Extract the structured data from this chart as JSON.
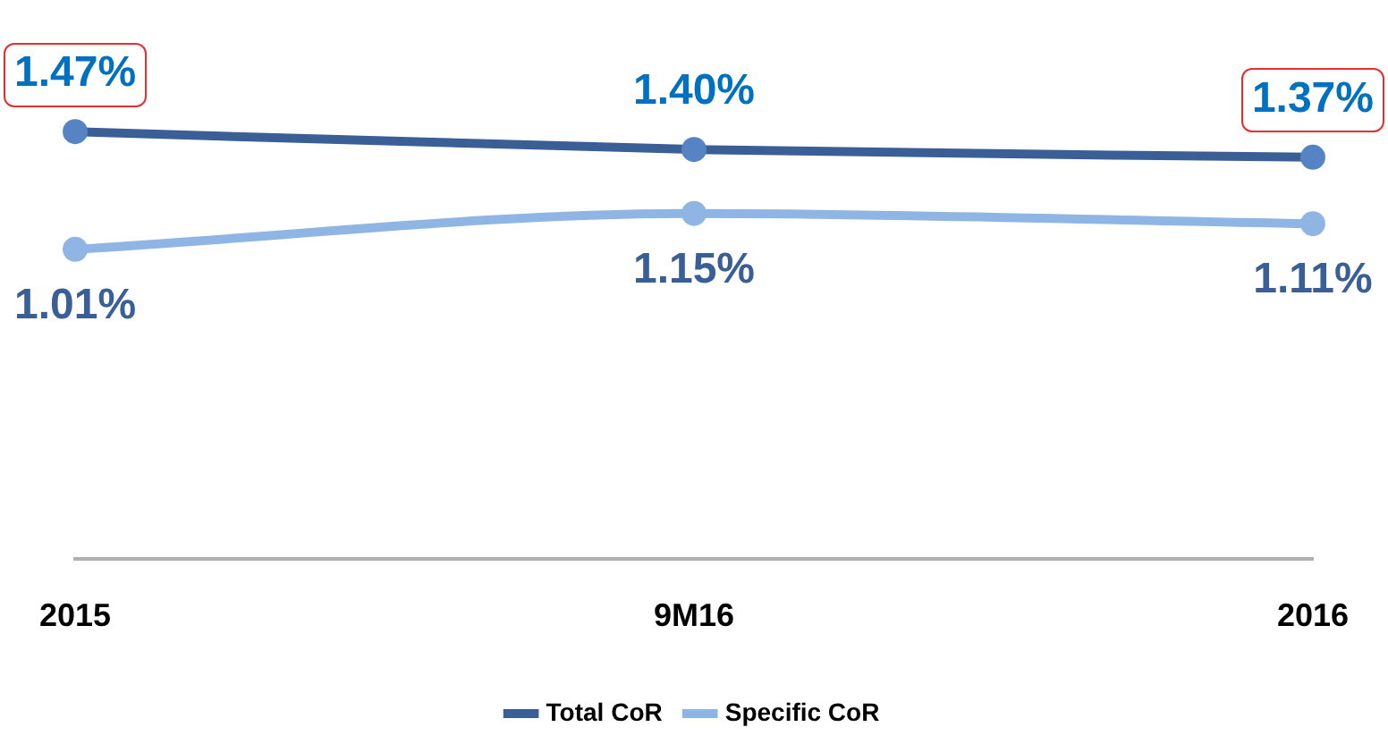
{
  "chart_data": {
    "type": "line",
    "categories": [
      "2015",
      "9M16",
      "2016"
    ],
    "series": [
      {
        "name": "Total CoR",
        "color": "#3a5f96",
        "values": [
          1.47,
          1.4,
          1.37
        ],
        "value_labels": [
          "1.47%",
          "1.40%",
          "1.37%"
        ]
      },
      {
        "name": "Specific CoR",
        "color": "#8fb5e4",
        "values": [
          1.01,
          1.15,
          1.11
        ],
        "value_labels": [
          "1.01%",
          "1.15%",
          "1.11%"
        ]
      }
    ],
    "tick_labels": "x",
    "grid": false,
    "legend": "bottom",
    "marker": "circle",
    "line_style": "solid"
  }
}
